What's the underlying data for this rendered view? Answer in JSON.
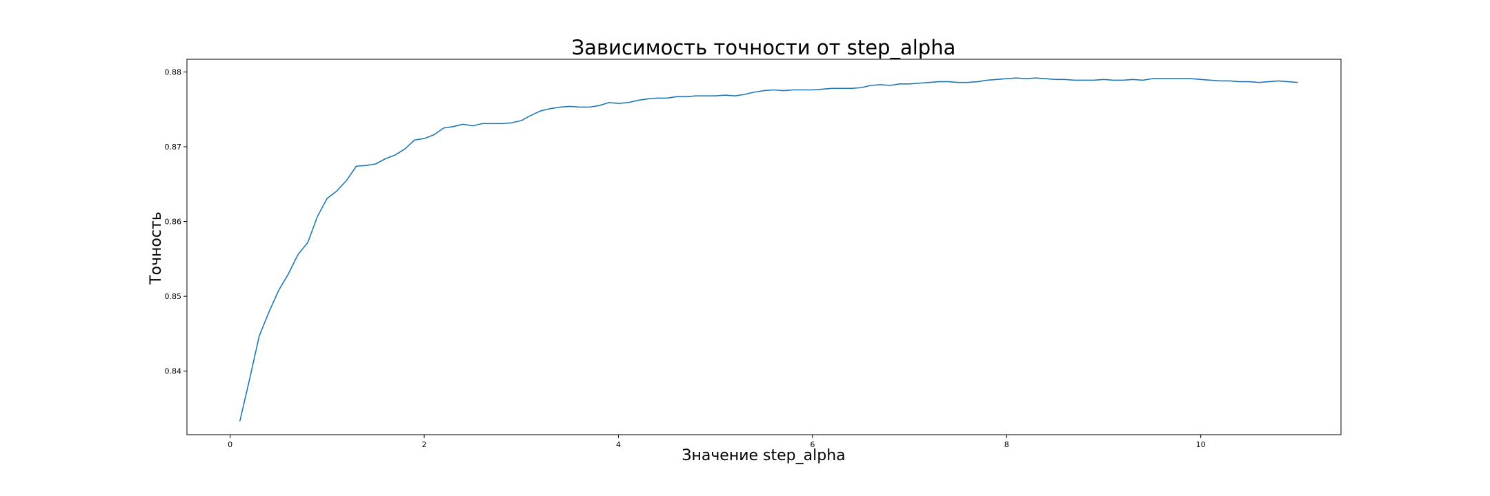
{
  "chart_data": {
    "type": "line",
    "title": "Зависимость точности от step_alpha",
    "xlabel": "Значение step_alpha",
    "ylabel": "Точность",
    "xlim": [
      -0.445,
      11.445
    ],
    "ylim": [
      0.8315,
      0.8817
    ],
    "xticks": [
      0,
      2,
      4,
      6,
      8,
      10
    ],
    "yticks": [
      0.84,
      0.85,
      0.86,
      0.87,
      0.88
    ],
    "grid": false,
    "legend": "none",
    "series": [
      {
        "color": "#1f77b4",
        "x": [
          0.1,
          0.2,
          0.3,
          0.4,
          0.5,
          0.6,
          0.7,
          0.8,
          0.9,
          1.0,
          1.1,
          1.2,
          1.3,
          1.4,
          1.5,
          1.6,
          1.7,
          1.8,
          1.9,
          2.0,
          2.1,
          2.2,
          2.3,
          2.4,
          2.5,
          2.6,
          2.7,
          2.8,
          2.9,
          3.0,
          3.1,
          3.2,
          3.3,
          3.4,
          3.5,
          3.6,
          3.7,
          3.8,
          3.9,
          4.0,
          4.1,
          4.2,
          4.3,
          4.4,
          4.5,
          4.6,
          4.7,
          4.8,
          4.9,
          5.0,
          5.1,
          5.2,
          5.3,
          5.4,
          5.5,
          5.6,
          5.7,
          5.8,
          5.9,
          6.0,
          6.1,
          6.2,
          6.3,
          6.4,
          6.5,
          6.6,
          6.7,
          6.8,
          6.9,
          7.0,
          7.1,
          7.2,
          7.3,
          7.4,
          7.5,
          7.6,
          7.7,
          7.8,
          7.9,
          8.0,
          8.1,
          8.2,
          8.3,
          8.4,
          8.5,
          8.6,
          8.7,
          8.8,
          8.9,
          9.0,
          9.1,
          9.2,
          9.3,
          9.4,
          9.5,
          9.6,
          9.7,
          9.8,
          9.9,
          10.0,
          10.1,
          10.2,
          10.3,
          10.4,
          10.5,
          10.6,
          10.7,
          10.8,
          10.9,
          11.0
        ],
        "y": [
          0.8333,
          0.8389,
          0.8447,
          0.8479,
          0.8508,
          0.853,
          0.8556,
          0.8572,
          0.8607,
          0.8631,
          0.8641,
          0.8655,
          0.8674,
          0.8675,
          0.8677,
          0.8684,
          0.8689,
          0.8697,
          0.8709,
          0.8711,
          0.8716,
          0.8725,
          0.8727,
          0.873,
          0.8728,
          0.8731,
          0.8731,
          0.8731,
          0.8732,
          0.8735,
          0.8742,
          0.8748,
          0.8751,
          0.8753,
          0.8754,
          0.8753,
          0.8753,
          0.8755,
          0.8759,
          0.8758,
          0.8759,
          0.8762,
          0.8764,
          0.8765,
          0.8765,
          0.8767,
          0.8767,
          0.8768,
          0.8768,
          0.8768,
          0.8769,
          0.8768,
          0.877,
          0.8773,
          0.8775,
          0.8776,
          0.8775,
          0.8776,
          0.8776,
          0.8776,
          0.8777,
          0.8778,
          0.8778,
          0.8778,
          0.8779,
          0.8782,
          0.8783,
          0.8782,
          0.8784,
          0.8784,
          0.8785,
          0.8786,
          0.8787,
          0.8787,
          0.8786,
          0.8786,
          0.8787,
          0.8789,
          0.879,
          0.8791,
          0.8792,
          0.8791,
          0.8792,
          0.8791,
          0.879,
          0.879,
          0.8789,
          0.8789,
          0.8789,
          0.879,
          0.8789,
          0.8789,
          0.879,
          0.8789,
          0.8791,
          0.8791,
          0.8791,
          0.8791,
          0.8791,
          0.879,
          0.8789,
          0.8788,
          0.8788,
          0.8787,
          0.8787,
          0.8786,
          0.8787,
          0.8788,
          0.8787,
          0.8786
        ]
      }
    ]
  }
}
